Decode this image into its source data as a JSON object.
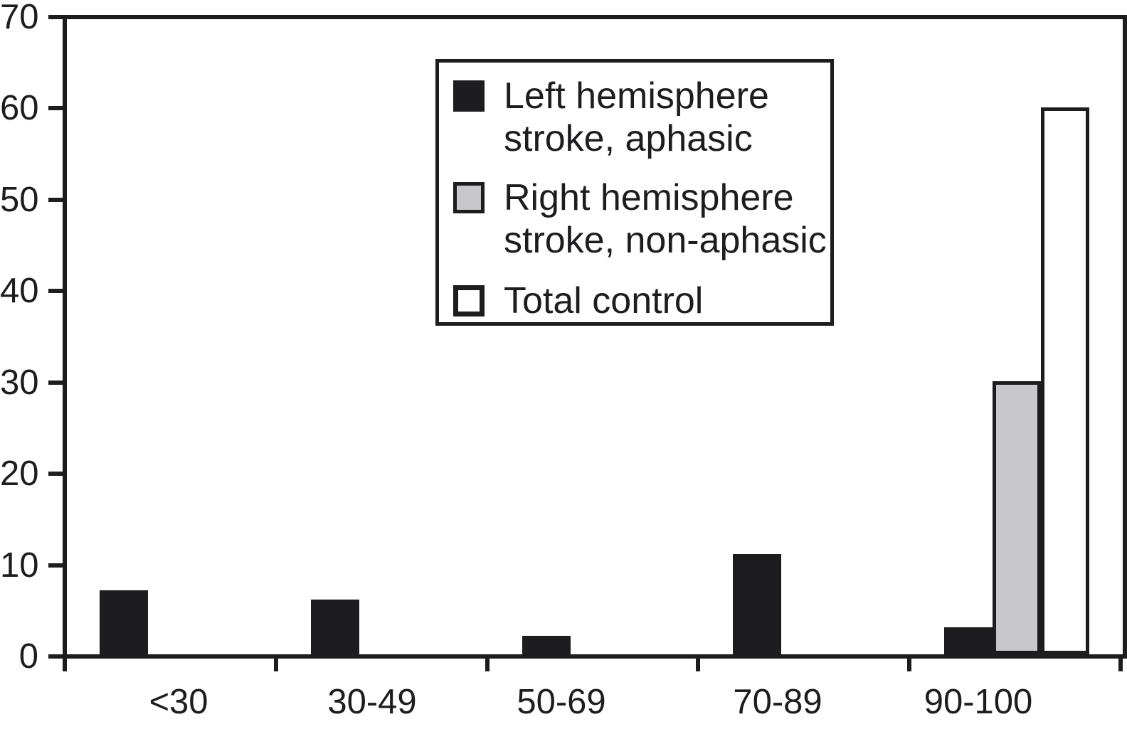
{
  "chart_data": {
    "type": "bar",
    "title": "",
    "xlabel": "",
    "ylabel": "",
    "categories": [
      "<30",
      "30-49",
      "50-69",
      "70-89",
      "90-100"
    ],
    "series": [
      {
        "name": "Left hemisphere stroke, aphasic",
        "color": "#1d1d1f",
        "values": [
          7,
          6,
          2,
          11,
          3
        ]
      },
      {
        "name": "Right hemisphere stroke, non-aphasic",
        "color": "#c8c8ca",
        "values": [
          0,
          0,
          0,
          0,
          30
        ]
      },
      {
        "name": "Total control",
        "color": "#ffffff",
        "values": [
          0,
          0,
          0,
          0,
          60
        ]
      }
    ],
    "ylim": [
      0,
      70
    ],
    "yticks": [
      70,
      60,
      50,
      40,
      30,
      20,
      10,
      0
    ],
    "grid": false,
    "bar_outline_color": "#1d1d1f",
    "legend_position": "inside-top-center"
  },
  "legend": {
    "items": [
      {
        "swatch": "black",
        "lines": [
          "Left hemisphere",
          "stroke, aphasic"
        ]
      },
      {
        "swatch": "gray",
        "lines": [
          "Right hemisphere",
          "stroke, non-aphasic"
        ]
      },
      {
        "swatch": "white",
        "lines": [
          "Total control"
        ]
      }
    ]
  }
}
